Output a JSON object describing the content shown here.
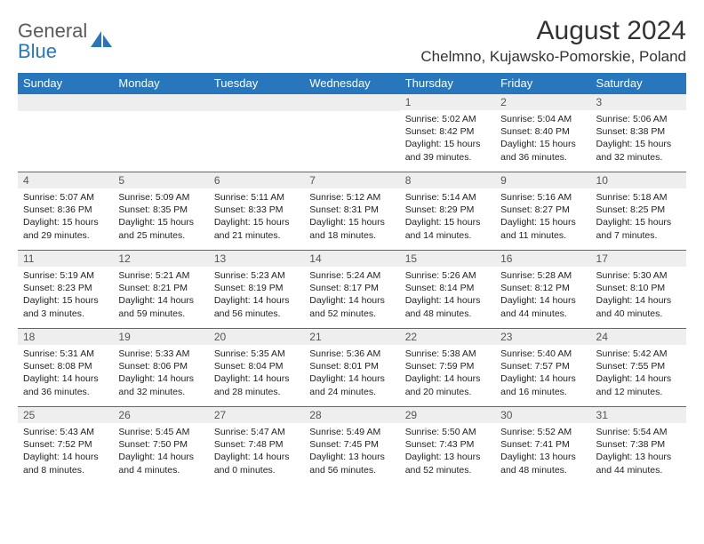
{
  "brand": {
    "word1": "General",
    "word2": "Blue",
    "gray_color": "#5a5a5a",
    "blue_color": "#2876bb"
  },
  "header": {
    "month_title": "August 2024",
    "location": "Chelmno, Kujawsko-Pomorskie, Poland"
  },
  "styling": {
    "header_bg": "#2876bb",
    "header_fg": "#ffffff",
    "daynum_bg": "#eeeeee",
    "cell_border": "#2876bb",
    "body_font_size": 10.5,
    "daynum_font_size": 12,
    "th_font_size": 13,
    "title_font_size": 30,
    "location_font_size": 17
  },
  "days_of_week": [
    "Sunday",
    "Monday",
    "Tuesday",
    "Wednesday",
    "Thursday",
    "Friday",
    "Saturday"
  ],
  "weeks": [
    [
      null,
      null,
      null,
      null,
      {
        "n": "1",
        "sr": "5:02 AM",
        "ss": "8:42 PM",
        "dl": "15 hours and 39 minutes."
      },
      {
        "n": "2",
        "sr": "5:04 AM",
        "ss": "8:40 PM",
        "dl": "15 hours and 36 minutes."
      },
      {
        "n": "3",
        "sr": "5:06 AM",
        "ss": "8:38 PM",
        "dl": "15 hours and 32 minutes."
      }
    ],
    [
      {
        "n": "4",
        "sr": "5:07 AM",
        "ss": "8:36 PM",
        "dl": "15 hours and 29 minutes."
      },
      {
        "n": "5",
        "sr": "5:09 AM",
        "ss": "8:35 PM",
        "dl": "15 hours and 25 minutes."
      },
      {
        "n": "6",
        "sr": "5:11 AM",
        "ss": "8:33 PM",
        "dl": "15 hours and 21 minutes."
      },
      {
        "n": "7",
        "sr": "5:12 AM",
        "ss": "8:31 PM",
        "dl": "15 hours and 18 minutes."
      },
      {
        "n": "8",
        "sr": "5:14 AM",
        "ss": "8:29 PM",
        "dl": "15 hours and 14 minutes."
      },
      {
        "n": "9",
        "sr": "5:16 AM",
        "ss": "8:27 PM",
        "dl": "15 hours and 11 minutes."
      },
      {
        "n": "10",
        "sr": "5:18 AM",
        "ss": "8:25 PM",
        "dl": "15 hours and 7 minutes."
      }
    ],
    [
      {
        "n": "11",
        "sr": "5:19 AM",
        "ss": "8:23 PM",
        "dl": "15 hours and 3 minutes."
      },
      {
        "n": "12",
        "sr": "5:21 AM",
        "ss": "8:21 PM",
        "dl": "14 hours and 59 minutes."
      },
      {
        "n": "13",
        "sr": "5:23 AM",
        "ss": "8:19 PM",
        "dl": "14 hours and 56 minutes."
      },
      {
        "n": "14",
        "sr": "5:24 AM",
        "ss": "8:17 PM",
        "dl": "14 hours and 52 minutes."
      },
      {
        "n": "15",
        "sr": "5:26 AM",
        "ss": "8:14 PM",
        "dl": "14 hours and 48 minutes."
      },
      {
        "n": "16",
        "sr": "5:28 AM",
        "ss": "8:12 PM",
        "dl": "14 hours and 44 minutes."
      },
      {
        "n": "17",
        "sr": "5:30 AM",
        "ss": "8:10 PM",
        "dl": "14 hours and 40 minutes."
      }
    ],
    [
      {
        "n": "18",
        "sr": "5:31 AM",
        "ss": "8:08 PM",
        "dl": "14 hours and 36 minutes."
      },
      {
        "n": "19",
        "sr": "5:33 AM",
        "ss": "8:06 PM",
        "dl": "14 hours and 32 minutes."
      },
      {
        "n": "20",
        "sr": "5:35 AM",
        "ss": "8:04 PM",
        "dl": "14 hours and 28 minutes."
      },
      {
        "n": "21",
        "sr": "5:36 AM",
        "ss": "8:01 PM",
        "dl": "14 hours and 24 minutes."
      },
      {
        "n": "22",
        "sr": "5:38 AM",
        "ss": "7:59 PM",
        "dl": "14 hours and 20 minutes."
      },
      {
        "n": "23",
        "sr": "5:40 AM",
        "ss": "7:57 PM",
        "dl": "14 hours and 16 minutes."
      },
      {
        "n": "24",
        "sr": "5:42 AM",
        "ss": "7:55 PM",
        "dl": "14 hours and 12 minutes."
      }
    ],
    [
      {
        "n": "25",
        "sr": "5:43 AM",
        "ss": "7:52 PM",
        "dl": "14 hours and 8 minutes."
      },
      {
        "n": "26",
        "sr": "5:45 AM",
        "ss": "7:50 PM",
        "dl": "14 hours and 4 minutes."
      },
      {
        "n": "27",
        "sr": "5:47 AM",
        "ss": "7:48 PM",
        "dl": "14 hours and 0 minutes."
      },
      {
        "n": "28",
        "sr": "5:49 AM",
        "ss": "7:45 PM",
        "dl": "13 hours and 56 minutes."
      },
      {
        "n": "29",
        "sr": "5:50 AM",
        "ss": "7:43 PM",
        "dl": "13 hours and 52 minutes."
      },
      {
        "n": "30",
        "sr": "5:52 AM",
        "ss": "7:41 PM",
        "dl": "13 hours and 48 minutes."
      },
      {
        "n": "31",
        "sr": "5:54 AM",
        "ss": "7:38 PM",
        "dl": "13 hours and 44 minutes."
      }
    ]
  ],
  "labels": {
    "sunrise": "Sunrise:",
    "sunset": "Sunset:",
    "daylight": "Daylight:"
  }
}
